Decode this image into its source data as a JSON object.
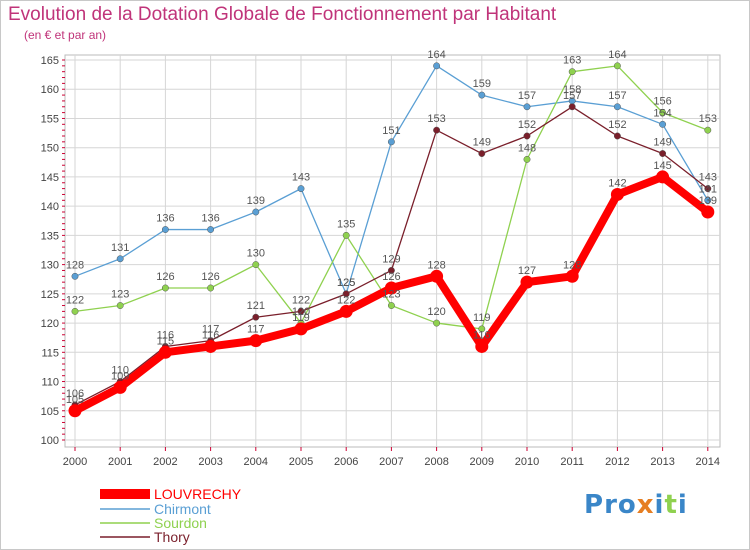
{
  "title": "Evolution de la Dotation Globale de Fonctionnement par Habitant",
  "subtitle": "(en € et par an)",
  "logo": {
    "letters": [
      "P",
      "r",
      "o",
      "x",
      "i",
      "t",
      "i"
    ]
  },
  "colors": {
    "title": "#c0347a",
    "grid": "#d6d6d6",
    "axis_tick": "#cc0033",
    "louvrechy": "#ff0000",
    "chirmont": "#5a9fd4",
    "sourdon": "#8fd14f",
    "thory": "#7a1f2b",
    "logo": [
      "#3a86c8",
      "#3a86c8",
      "#3a86c8",
      "#e67e22",
      "#3a86c8",
      "#8fd14f",
      "#3a86c8"
    ]
  },
  "chart_data": {
    "type": "line",
    "title": "Evolution de la Dotation Globale de Fonctionnement par Habitant",
    "subtitle": "(en € et par an)",
    "x": [
      "2000",
      "2001",
      "2002",
      "2003",
      "2004",
      "2005",
      "2006",
      "2007",
      "2008",
      "2009",
      "2010",
      "2011",
      "2012",
      "2013",
      "2014"
    ],
    "ylim": [
      100,
      165
    ],
    "yticks": [
      100,
      105,
      110,
      115,
      120,
      125,
      130,
      135,
      140,
      145,
      150,
      155,
      160,
      165
    ],
    "grid": true,
    "legend_position": "bottom-left",
    "series": [
      {
        "name": "LOUVRECHY",
        "key": "louvrechy",
        "values": [
          105,
          109,
          115,
          116,
          117,
          119,
          122,
          126,
          128,
          116,
          127,
          128,
          142,
          145,
          139
        ]
      },
      {
        "name": "Chirmont",
        "key": "chirmont",
        "values": [
          128,
          131,
          136,
          136,
          139,
          143,
          125,
          151,
          164,
          159,
          157,
          158,
          157,
          154,
          141
        ]
      },
      {
        "name": "Sourdon",
        "key": "sourdon",
        "values": [
          122,
          123,
          126,
          126,
          130,
          120,
          135,
          123,
          120,
          119,
          148,
          163,
          164,
          156,
          153
        ]
      },
      {
        "name": "Thory",
        "key": "thory",
        "values": [
          106,
          110,
          116,
          117,
          121,
          122,
          125,
          129,
          153,
          149,
          152,
          157,
          152,
          149,
          143
        ]
      }
    ]
  }
}
